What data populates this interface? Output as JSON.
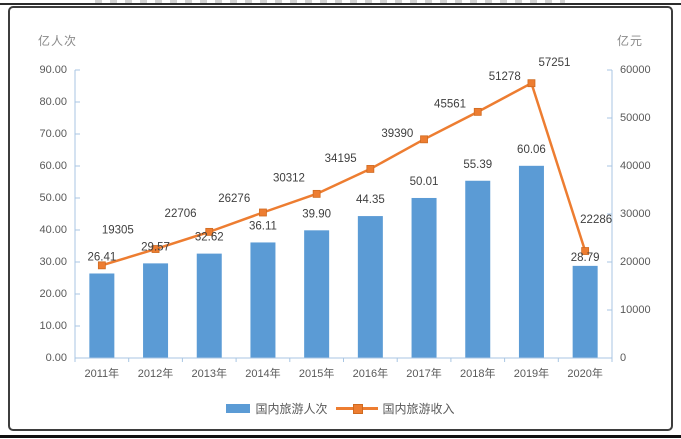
{
  "chart": {
    "frame": "bordered chart panel between two horizontal page rules, title cropped off-screen at top"
  },
  "chart_data": {
    "type": "combo-bar-line",
    "categories": [
      "2011年",
      "2012年",
      "2013年",
      "2014年",
      "2015年",
      "2016年",
      "2017年",
      "2018年",
      "2019年",
      "2020年"
    ],
    "series": [
      {
        "name": "国内旅游人次",
        "type": "bar",
        "axis": "left",
        "color": "#5B9BD5",
        "values": [
          26.41,
          29.57,
          32.62,
          36.11,
          39.9,
          44.35,
          50.01,
          55.39,
          60.06,
          28.79
        ],
        "labels": [
          "26.41",
          "29.57",
          "32.62",
          "36.11",
          "39.90",
          "44.35",
          "50.01",
          "55.39",
          "60.06",
          "28.79"
        ]
      },
      {
        "name": "国内旅游收入",
        "type": "line",
        "axis": "right",
        "color": "#ED7D31",
        "marker": "square",
        "values": [
          19305,
          22706,
          26276,
          30312,
          34195,
          39390,
          45561,
          51278,
          57251,
          22286
        ],
        "labels": [
          "19305",
          "22706",
          "26276",
          "30312",
          "34195",
          "39390",
          "45561",
          "51278",
          "57251",
          "22286"
        ]
      }
    ],
    "left_axis": {
      "title": "亿人次",
      "min": 0,
      "max": 90,
      "step": 10,
      "tick_labels": [
        "0.00",
        "10.00",
        "20.00",
        "30.00",
        "40.00",
        "50.00",
        "60.00",
        "70.00",
        "80.00",
        "90.00"
      ]
    },
    "right_axis": {
      "title": "亿元",
      "min": 0,
      "max": 60000,
      "step": 10000,
      "tick_labels": [
        "0",
        "10000",
        "20000",
        "30000",
        "40000",
        "50000",
        "60000"
      ]
    },
    "grid": false,
    "legend_position": "bottom",
    "colors": {
      "bar": "#5B9BD5",
      "line": "#ED7D31",
      "axis_line": "#A9C6E3",
      "tick_label": "#595959",
      "value_label": "#3f3f3f",
      "axis_title": "#8a8a8a"
    }
  }
}
